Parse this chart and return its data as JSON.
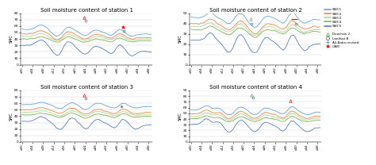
{
  "titles": [
    "Soil moisture content of station 1",
    "Soil moisture content of station 2",
    "Soil moisture content of station 3",
    "Soil moisture content of station 4"
  ],
  "ylabel": "SMC",
  "ylim_s1": [
    0,
    80
  ],
  "ylim_s2": [
    0,
    50
  ],
  "ylim_s3": [
    0,
    80
  ],
  "ylim_s4": [
    0,
    90
  ],
  "legend_sim_labels": [
    "SWC1",
    "SWC2",
    "SWC3",
    "SWC4",
    "SWC5"
  ],
  "legend_obs_labels": [
    "Dew/rain 2",
    "Landsat B",
    "Ali-Baba revised",
    "GAM"
  ],
  "depth_colors": [
    "#5b9bd5",
    "#ed7d31",
    "#a9d18e",
    "#70ad47",
    "#4472c4"
  ],
  "obs_colors": [
    "#70ad47",
    "#4472c4",
    "#7f7f7f",
    "#ff0000"
  ],
  "obs_markers": [
    "^",
    "o",
    "+",
    "*"
  ],
  "background": "#ffffff",
  "grid_color": "#d9d9d9",
  "title_fontsize": 5.0,
  "tick_fontsize": 3.2,
  "label_fontsize": 3.5,
  "legend_fontsize": 3.0,
  "line_width": 0.55
}
